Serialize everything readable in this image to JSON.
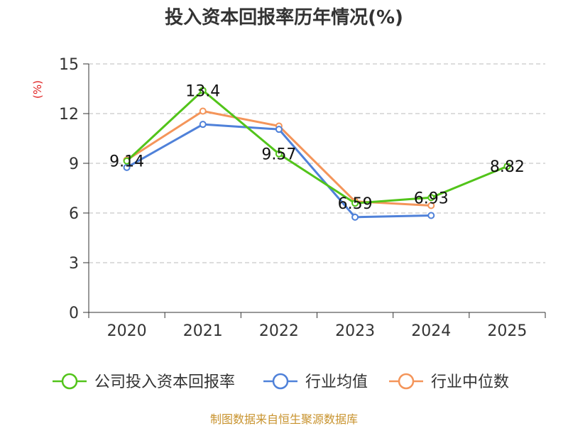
{
  "chart_data": {
    "type": "line",
    "title": "投入资本回报率历年情况(%)",
    "unit_label": "(%)",
    "categories": [
      "2020",
      "2021",
      "2022",
      "2023",
      "2024",
      "2025"
    ],
    "ylim": [
      0,
      15
    ],
    "yticks": [
      "0",
      "3",
      "6",
      "9",
      "12",
      "15"
    ],
    "grid": true,
    "legend_position": "bottom",
    "series": [
      {
        "name": "公司投入资本回报率",
        "color": "#52c41a",
        "values": [
          9.14,
          13.4,
          9.57,
          6.59,
          6.93,
          8.82
        ],
        "labels": [
          "9.14",
          "13.4",
          "9.57",
          "6.59",
          "6.93",
          "8.82"
        ]
      },
      {
        "name": "行业均值",
        "color": "#4f81d9",
        "values": [
          8.75,
          11.35,
          11.05,
          5.75,
          5.85,
          null
        ]
      },
      {
        "name": "行业中位数",
        "color": "#f4955a",
        "values": [
          9.2,
          12.15,
          11.25,
          6.7,
          6.45,
          null
        ]
      }
    ],
    "source": "制图数据来自恒生聚源数据库"
  }
}
